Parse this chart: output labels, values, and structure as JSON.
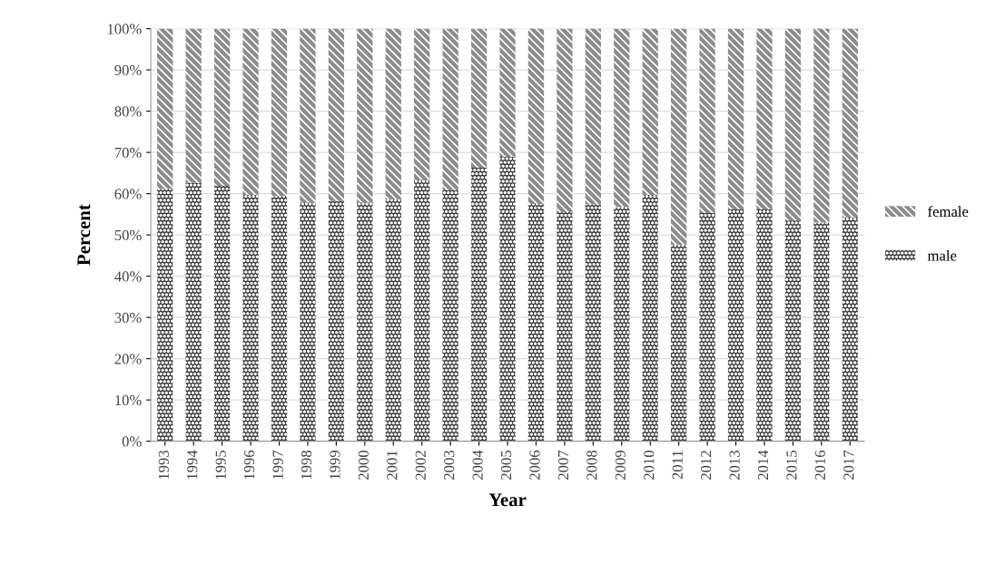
{
  "chart_data": {
    "type": "bar",
    "stacked": true,
    "xlabel": "Year",
    "ylabel": "Percent",
    "categories": [
      "1993",
      "1994",
      "1995",
      "1996",
      "1997",
      "1998",
      "1999",
      "2000",
      "2001",
      "2002",
      "2003",
      "2004",
      "2005",
      "2006",
      "2007",
      "2008",
      "2009",
      "2010",
      "2011",
      "2012",
      "2013",
      "2014",
      "2015",
      "2016",
      "2017"
    ],
    "series": [
      {
        "name": "male",
        "color": "#3a3a3a",
        "values": [
          61.2,
          62.6,
          61.9,
          59.7,
          59.5,
          57.9,
          58.2,
          57.9,
          58.6,
          63.4,
          60.8,
          66.3,
          68.9,
          57.5,
          55.5,
          57.4,
          56.8,
          59.7,
          47.6,
          55.3,
          56.2,
          56.2,
          53.5,
          53.0,
          54.2
        ]
      },
      {
        "name": "female",
        "color": "#8c8c8c",
        "values": [
          38.8,
          37.4,
          38.1,
          40.3,
          40.5,
          42.1,
          41.8,
          42.1,
          41.4,
          36.6,
          39.2,
          33.7,
          31.1,
          42.5,
          44.5,
          42.6,
          43.2,
          40.3,
          52.4,
          44.7,
          43.8,
          43.8,
          46.5,
          47.0,
          45.8
        ]
      }
    ],
    "ylim": [
      0,
      100
    ],
    "yticks": [
      {
        "value": 0,
        "label": "0%"
      },
      {
        "value": 10,
        "label": "10%"
      },
      {
        "value": 20,
        "label": "20%"
      },
      {
        "value": 30,
        "label": "30%"
      },
      {
        "value": 40,
        "label": "40%"
      },
      {
        "value": 50,
        "label": "50%"
      },
      {
        "value": 60,
        "label": "60%"
      },
      {
        "value": 70,
        "label": "70%"
      },
      {
        "value": 80,
        "label": "80%"
      },
      {
        "value": 90,
        "label": "90%"
      },
      {
        "value": 100,
        "label": "100%"
      }
    ],
    "grid": "y",
    "legend": "right"
  }
}
